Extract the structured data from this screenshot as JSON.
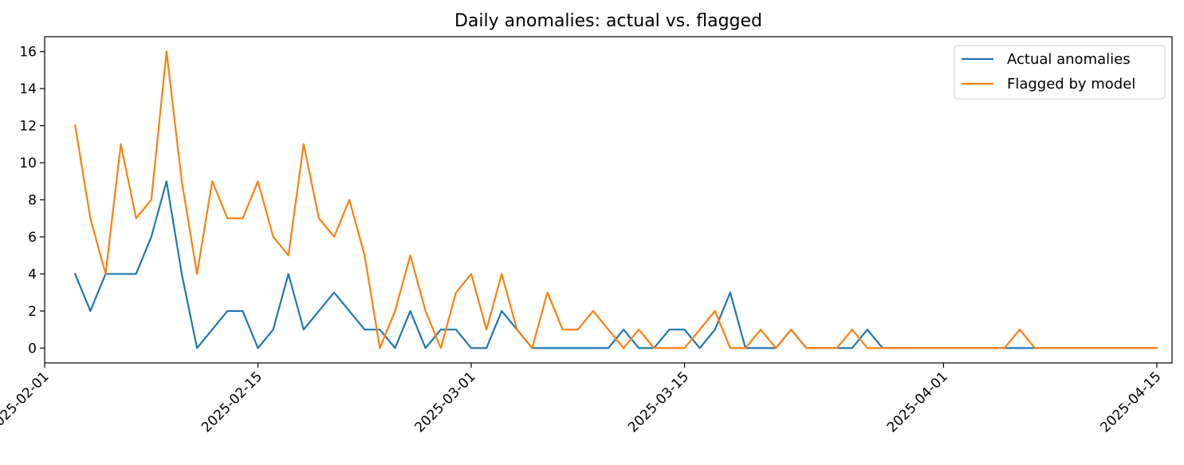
{
  "chart_data": {
    "type": "line",
    "title": "Daily anomalies: actual vs. flagged",
    "xlabel": "",
    "ylabel": "",
    "x_start": "2025-02-03",
    "x_end": "2025-04-15",
    "xlim": [
      "2025-02-01",
      "2025-04-16"
    ],
    "ylim": [
      -0.8,
      16.8
    ],
    "x_ticks": [
      "2025-02-01",
      "2025-02-15",
      "2025-03-01",
      "2025-03-15",
      "2025-04-01",
      "2025-04-15"
    ],
    "y_ticks": [
      0,
      2,
      4,
      6,
      8,
      10,
      12,
      14,
      16
    ],
    "grid": false,
    "legend_position": "top-right",
    "series": [
      {
        "name": "Actual anomalies",
        "color": "#1f77b4",
        "values": [
          4,
          2,
          4,
          4,
          4,
          6,
          9,
          4,
          0,
          1,
          2,
          2,
          0,
          1,
          4,
          1,
          2,
          3,
          2,
          1,
          1,
          0,
          2,
          0,
          1,
          1,
          0,
          0,
          2,
          1,
          0,
          0,
          0,
          0,
          0,
          0,
          1,
          0,
          0,
          1,
          1,
          0,
          1,
          3,
          0,
          0,
          0,
          1,
          0,
          0,
          0,
          0,
          1,
          0,
          0,
          0,
          0,
          0,
          0,
          0,
          0,
          0,
          0,
          0,
          0,
          0,
          0,
          0,
          0,
          0,
          0,
          0
        ]
      },
      {
        "name": "Flagged by model",
        "color": "#ff7f0e",
        "values": [
          12,
          7,
          4,
          11,
          7,
          8,
          16,
          9,
          4,
          9,
          7,
          7,
          9,
          6,
          5,
          11,
          7,
          6,
          8,
          5,
          0,
          2,
          5,
          2,
          0,
          3,
          4,
          1,
          4,
          1,
          0,
          3,
          1,
          1,
          2,
          1,
          0,
          1,
          0,
          0,
          0,
          1,
          2,
          0,
          0,
          1,
          0,
          1,
          0,
          0,
          0,
          1,
          0,
          0,
          0,
          0,
          0,
          0,
          0,
          0,
          0,
          0,
          1,
          0,
          0,
          0,
          0,
          0,
          0,
          0,
          0,
          0
        ]
      }
    ]
  }
}
